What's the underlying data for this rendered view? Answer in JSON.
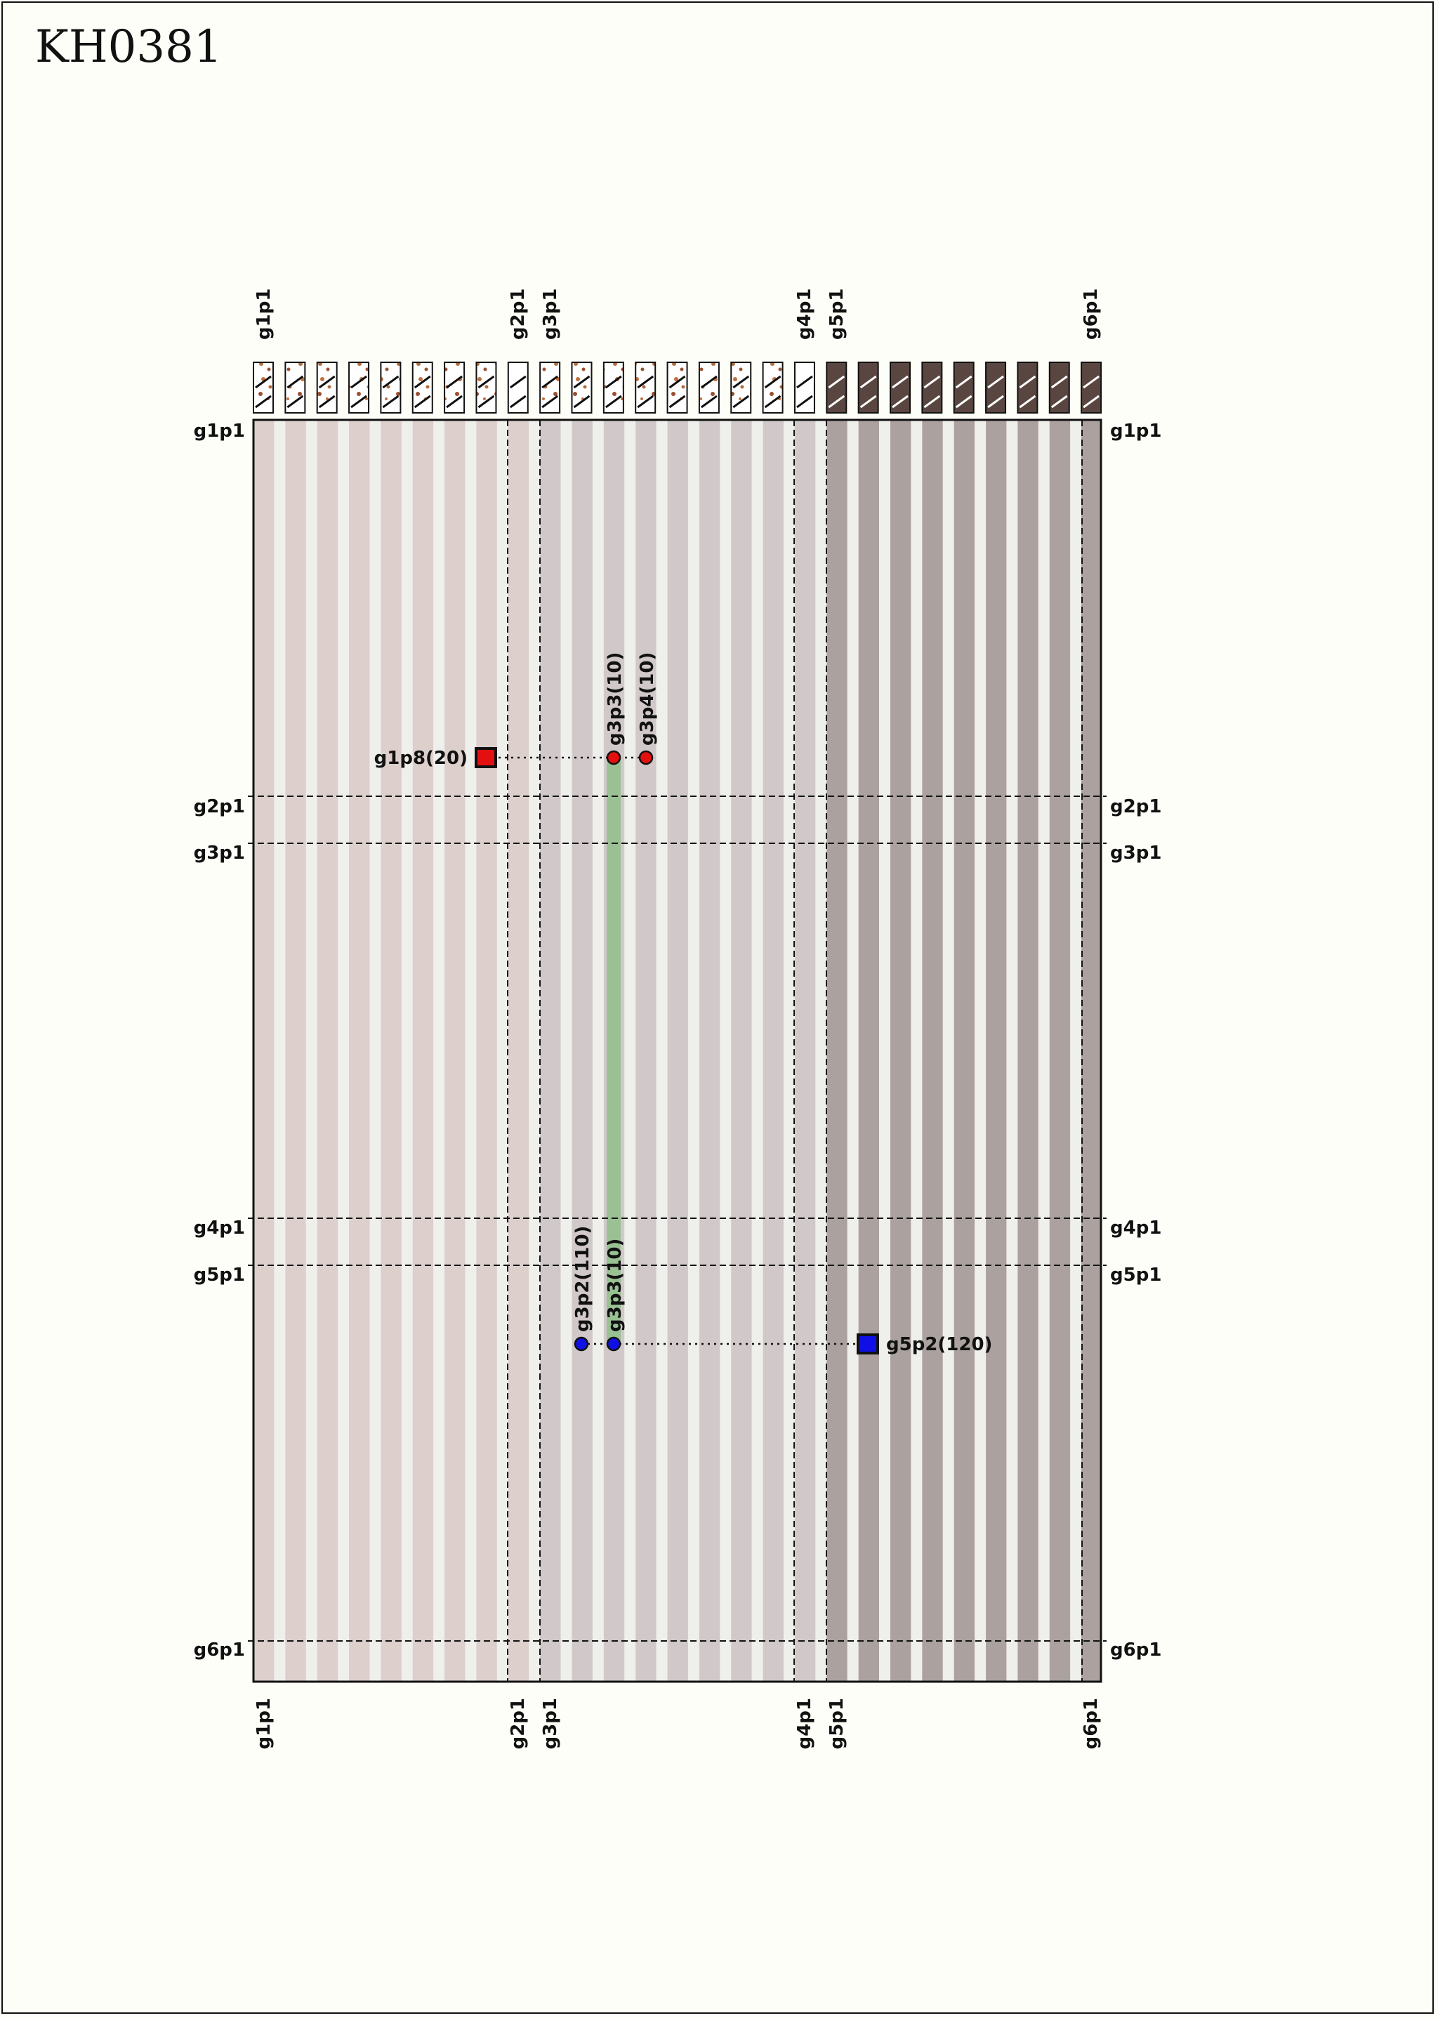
{
  "title": "KH0381",
  "colors": {
    "background": "#fefef8",
    "group1_stripe": "#dccfcc",
    "group2_stripe": "#d1c9c9",
    "group3_stripe": "#aba2a0",
    "light_stripe": "#efefec",
    "highlight": "#8fc08a",
    "red_marker": "#e41010",
    "blue_marker": "#1010e6",
    "swatch_dark": "#5a4640",
    "swatch_speckle": "#b46a3a"
  },
  "swatch_icons": [
    "speckled-swatch",
    "speckled-swatch",
    "speckled-swatch",
    "speckled-swatch",
    "speckled-swatch",
    "speckled-swatch",
    "speckled-swatch",
    "speckled-swatch",
    "striped-swatch",
    "speckled-swatch",
    "speckled-swatch",
    "speckled-swatch",
    "speckled-swatch",
    "speckled-swatch",
    "speckled-swatch",
    "speckled-swatch",
    "speckled-swatch",
    "striped-swatch",
    "dark-swatch",
    "dark-swatch",
    "dark-swatch",
    "dark-swatch",
    "dark-swatch",
    "dark-swatch",
    "dark-swatch",
    "dark-swatch",
    "dark-swatch"
  ],
  "column_labels": [
    "g1p1",
    "g2p1",
    "g3p1",
    "g4p1",
    "g5p1",
    "g6p1"
  ],
  "row_labels": [
    "g1p1",
    "g2p1",
    "g3p1",
    "g4p1",
    "g5p1",
    "g6p1"
  ],
  "markers": {
    "top_row": {
      "square_label": "g1p8(20)",
      "dot_labels": [
        "g3p3(10)",
        "g3p4(10)"
      ]
    },
    "bottom_row": {
      "square_label": "g5p2(120)",
      "dot_labels": [
        "g3p2(110)",
        "g3p3(10)"
      ]
    }
  }
}
